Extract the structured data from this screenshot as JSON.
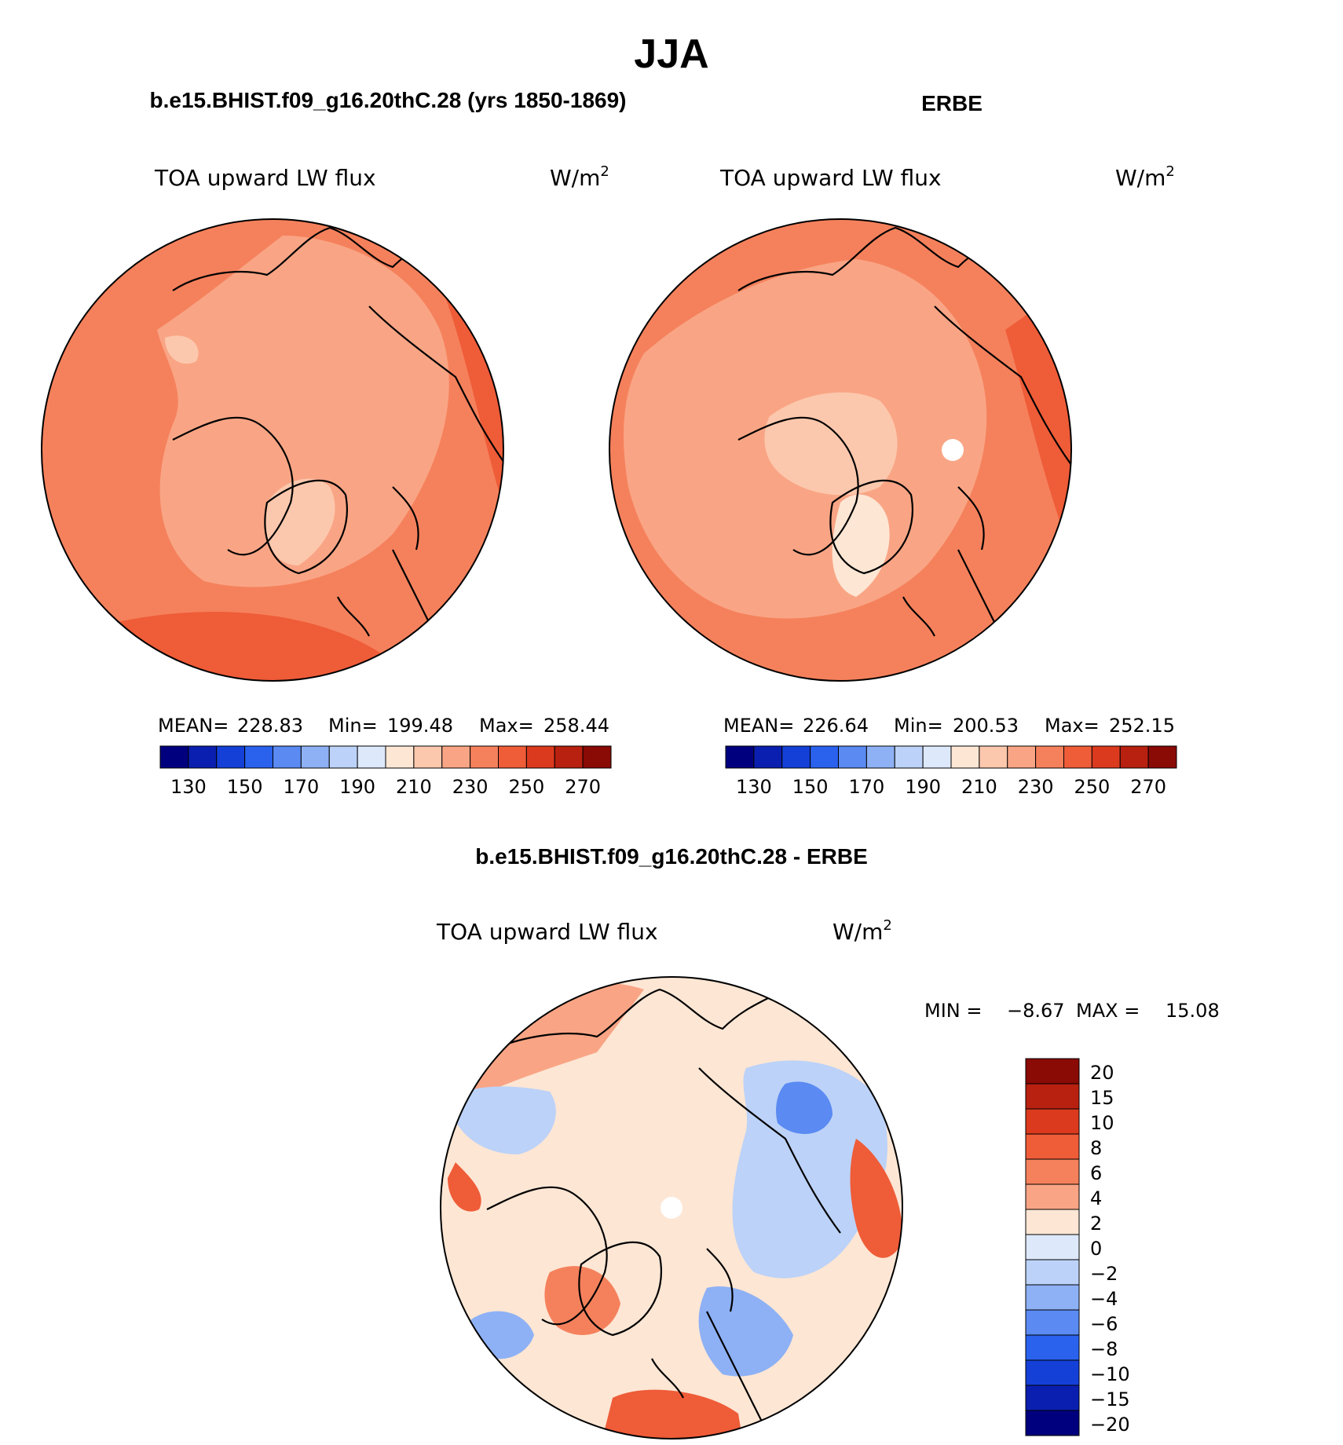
{
  "chart_data": {
    "type": "heatmap",
    "title": "JJA",
    "panels": [
      {
        "id": "model",
        "title": "b.e15.BHIST.f09_g16.20thC.28 (yrs 1850-1869)",
        "variable": "TOA upward LW flux",
        "units_base": "W/m",
        "units_exp": "2",
        "stats": {
          "mean_label": "MEAN=",
          "mean": "228.83",
          "min_label": "Min=",
          "min": "199.48",
          "max_label": "Max=",
          "max": "258.44"
        },
        "colorbar_ticks": [
          "130",
          "150",
          "170",
          "190",
          "210",
          "230",
          "250",
          "270"
        ],
        "colorbar_range": [
          120,
          280
        ],
        "colorbar_step": 10,
        "polar_hole": false
      },
      {
        "id": "obs",
        "title": "ERBE",
        "variable": "TOA upward LW flux",
        "units_base": "W/m",
        "units_exp": "2",
        "stats": {
          "mean_label": "MEAN=",
          "mean": "226.64",
          "min_label": "Min=",
          "min": "200.53",
          "max_label": "Max=",
          "max": "252.15"
        },
        "colorbar_ticks": [
          "130",
          "150",
          "170",
          "190",
          "210",
          "230",
          "250",
          "270"
        ],
        "colorbar_range": [
          120,
          280
        ],
        "colorbar_step": 10,
        "polar_hole": true
      },
      {
        "id": "diff",
        "title": "b.e15.BHIST.f09_g16.20thC.28 - ERBE",
        "variable": "TOA upward LW flux",
        "units_base": "W/m",
        "units_exp": "2",
        "stats": {
          "min_label": "MIN =",
          "min": "−8.67",
          "max_label": "MAX =",
          "max": "15.08"
        },
        "colorbar_levels": [
          "20",
          "15",
          "10",
          "8",
          "6",
          "4",
          "2",
          "0",
          "−2",
          "−4",
          "−6",
          "−8",
          "−10",
          "−15",
          "−20"
        ],
        "polar_hole": true
      }
    ],
    "abs_palette": [
      "#00007f",
      "#0a1fb0",
      "#1440d8",
      "#2a62ee",
      "#5a8af2",
      "#8eb1f5",
      "#bcd2f8",
      "#dde9fb",
      "#fde6d4",
      "#fcc8ad",
      "#f9a585",
      "#f5815c",
      "#ef5c38",
      "#dc3a1e",
      "#b8200f",
      "#8a0a05"
    ],
    "diff_palette": [
      "#8a0a05",
      "#b8200f",
      "#dc3a1e",
      "#ef5c38",
      "#f5815c",
      "#f9a585",
      "#fde6d4",
      "#dde9fb",
      "#bcd2f8",
      "#8eb1f5",
      "#5a8af2",
      "#2a62ee",
      "#1440d8",
      "#0a1fb0",
      "#00007f"
    ]
  }
}
